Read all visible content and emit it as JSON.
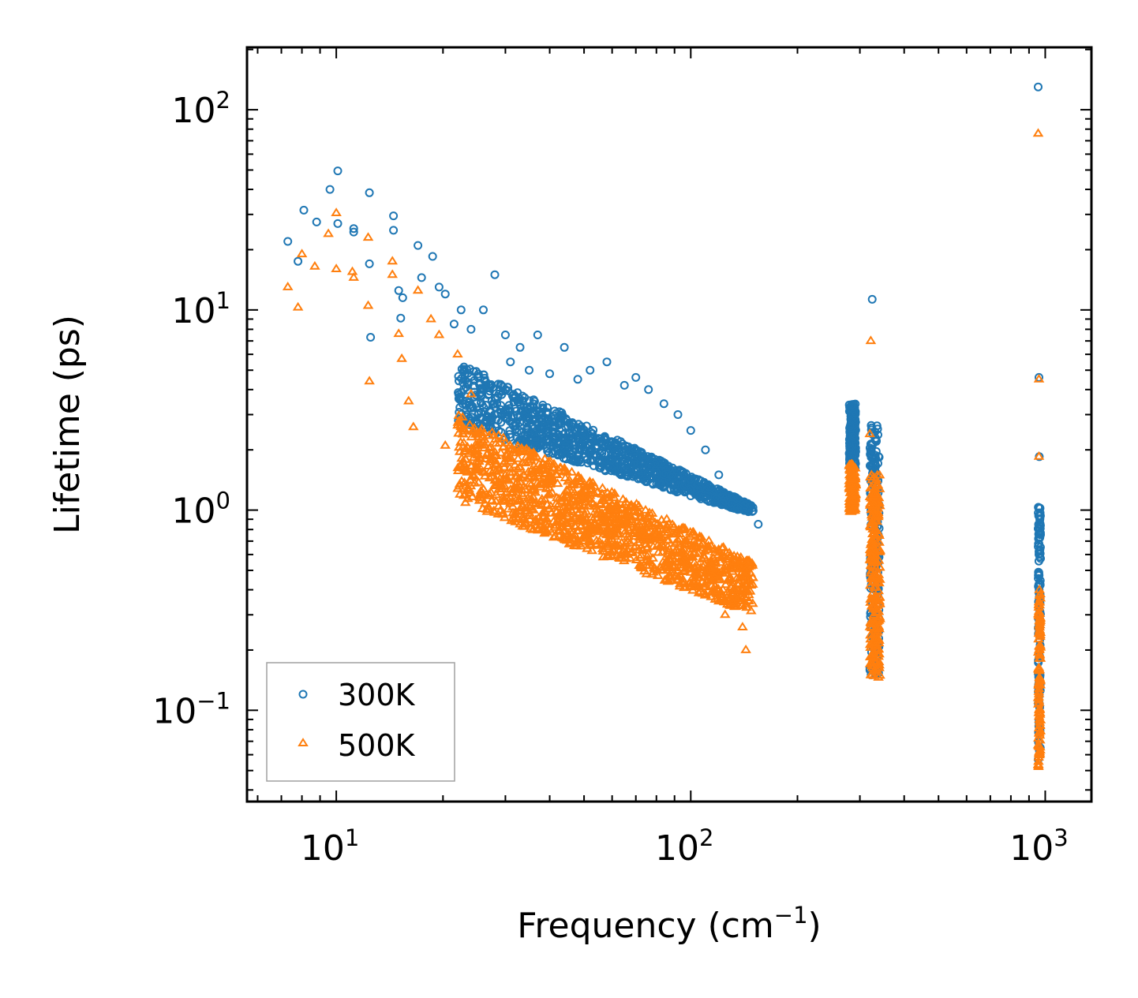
{
  "chart_data": {
    "type": "scatter",
    "title": "",
    "xlabel": "Frequency (cm",
    "xlabel_exp": "−1",
    "xlabel_close": ")",
    "ylabel": "Lifetime (ps)",
    "xscale": "log",
    "yscale": "log",
    "xlim": [
      5.6,
      1350
    ],
    "ylim": [
      0.035,
      205
    ],
    "x_ticks": [
      {
        "value": 10,
        "base": "10",
        "exp": "1"
      },
      {
        "value": 100,
        "base": "10",
        "exp": "2"
      },
      {
        "value": 1000,
        "base": "10",
        "exp": "3"
      }
    ],
    "y_ticks": [
      {
        "value": 0.1,
        "base": "10",
        "exp": "−1"
      },
      {
        "value": 1,
        "base": "10",
        "exp": "0"
      },
      {
        "value": 10,
        "base": "10",
        "exp": "1"
      },
      {
        "value": 100,
        "base": "10",
        "exp": "2"
      }
    ],
    "legend_position": "lower-left",
    "series": [
      {
        "name": "300K",
        "marker": "circle",
        "color": "#1f77b4",
        "points": [
          [
            7.3,
            22
          ],
          [
            7.8,
            17.5
          ],
          [
            8.1,
            31.5
          ],
          [
            8.8,
            27.5
          ],
          [
            9.6,
            40
          ],
          [
            10.1,
            49.5
          ],
          [
            10.1,
            27
          ],
          [
            11.2,
            25.5
          ],
          [
            11.2,
            24.5
          ],
          [
            12.4,
            38.5
          ],
          [
            12.4,
            17
          ],
          [
            12.5,
            7.3
          ],
          [
            14.5,
            29.5
          ],
          [
            14.5,
            25
          ],
          [
            15,
            12.5
          ],
          [
            15.2,
            9.1
          ],
          [
            15.4,
            11.5
          ],
          [
            17,
            21
          ],
          [
            17.4,
            14.5
          ],
          [
            18.7,
            18.5
          ],
          [
            19.5,
            13
          ],
          [
            20.3,
            12
          ],
          [
            21.5,
            8.5
          ],
          [
            22.5,
            10
          ],
          [
            24,
            8
          ],
          [
            26,
            10
          ],
          [
            28,
            15
          ],
          [
            30,
            7.5
          ],
          [
            31,
            5.5
          ],
          [
            33,
            6.5
          ],
          [
            35,
            5
          ],
          [
            37,
            7.5
          ],
          [
            40,
            4.8
          ],
          [
            44,
            6.5
          ],
          [
            48,
            4.5
          ],
          [
            52,
            5
          ],
          [
            58,
            5.5
          ],
          [
            65,
            4.2
          ],
          [
            70,
            4.6
          ],
          [
            76,
            4
          ],
          [
            84,
            3.4
          ],
          [
            92,
            3
          ],
          [
            100,
            2.5
          ],
          [
            110,
            2
          ],
          [
            120,
            1.5
          ],
          [
            135,
            1.02
          ],
          [
            155,
            0.85
          ],
          [
            325,
            11.3
          ],
          [
            955,
            130
          ],
          [
            960,
            4.6
          ],
          [
            962,
            1.85
          ],
          [
            960,
            0.68
          ]
        ],
        "clusters": [
          {
            "x_range": [
              22,
              150
            ],
            "y_low": [
              2.6,
              0.95
            ],
            "y_high": [
              5.5,
              1.05
            ],
            "count": 1100
          },
          {
            "x_range": [
              280,
              292
            ],
            "y_low": [
              1.6,
              1.6
            ],
            "y_high": [
              3.4,
              3.4
            ],
            "count": 160
          },
          {
            "x_range": [
              320,
              340
            ],
            "y_low": [
              0.15,
              0.15
            ],
            "y_high": [
              2.7,
              2.7
            ],
            "count": 220
          },
          {
            "x_range": [
              955,
              970
            ],
            "y_low": [
              0.055,
              0.055
            ],
            "y_high": [
              1.1,
              1.1
            ],
            "count": 120
          }
        ]
      },
      {
        "name": "500K",
        "marker": "triangle",
        "color": "#ff7f0e",
        "points": [
          [
            7.3,
            13
          ],
          [
            7.8,
            10.3
          ],
          [
            8,
            19
          ],
          [
            8.7,
            16.5
          ],
          [
            9.5,
            24
          ],
          [
            10,
            30.5
          ],
          [
            10,
            16
          ],
          [
            11.1,
            15.5
          ],
          [
            11.2,
            14.5
          ],
          [
            12.3,
            23
          ],
          [
            12.3,
            10.5
          ],
          [
            12.4,
            4.4
          ],
          [
            14.4,
            17.5
          ],
          [
            14.4,
            15
          ],
          [
            15,
            7.6
          ],
          [
            15.3,
            5.7
          ],
          [
            16,
            3.5
          ],
          [
            16.5,
            2.6
          ],
          [
            17,
            12.5
          ],
          [
            18.5,
            9
          ],
          [
            19.5,
            7.5
          ],
          [
            20.3,
            2.1
          ],
          [
            22,
            6
          ],
          [
            24,
            3.8
          ],
          [
            25,
            1.6
          ],
          [
            27,
            1.2
          ],
          [
            29.5,
            0.95
          ],
          [
            33,
            0.85
          ],
          [
            36,
            0.8
          ],
          [
            40,
            0.8
          ],
          [
            45,
            0.75
          ],
          [
            50,
            0.7
          ],
          [
            55,
            0.8
          ],
          [
            65,
            0.85
          ],
          [
            75,
            0.75
          ],
          [
            85,
            0.55
          ],
          [
            95,
            0.45
          ],
          [
            110,
            0.38
          ],
          [
            125,
            0.3
          ],
          [
            140,
            0.26
          ],
          [
            143,
            0.2
          ],
          [
            322,
            7
          ],
          [
            320,
            2.4
          ],
          [
            955,
            76
          ],
          [
            960,
            4.5
          ],
          [
            960,
            1.85
          ]
        ],
        "clusters": [
          {
            "x_range": [
              22,
              150
            ],
            "y_low": [
              1.1,
              0.3
            ],
            "y_high": [
              3.0,
              0.55
            ],
            "count": 1300
          },
          {
            "x_range": [
              280,
              292
            ],
            "y_low": [
              0.98,
              0.98
            ],
            "y_high": [
              1.7,
              1.7
            ],
            "count": 140
          },
          {
            "x_range": [
              320,
              342
            ],
            "y_low": [
              0.145,
              0.145
            ],
            "y_high": [
              1.5,
              1.5
            ],
            "count": 240
          },
          {
            "x_range": [
              955,
              970
            ],
            "y_low": [
              0.052,
              0.052
            ],
            "y_high": [
              0.4,
              0.4
            ],
            "count": 100
          }
        ]
      }
    ]
  }
}
